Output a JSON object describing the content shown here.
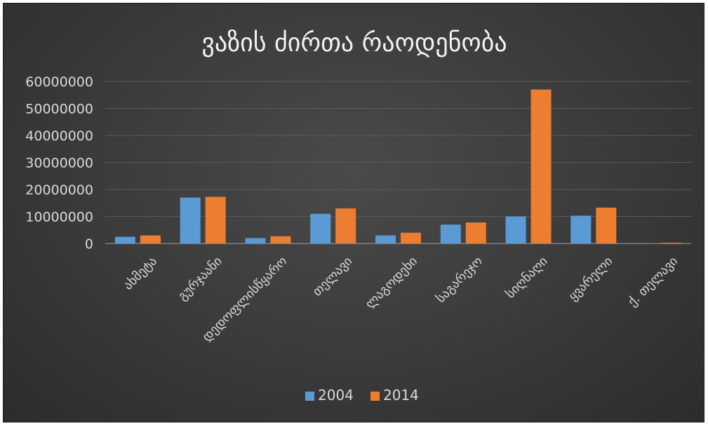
{
  "chart_data": {
    "type": "bar",
    "title": "ვაზის ძირთა რაოდენობა",
    "categories": [
      "ახმეტა",
      "გურჯაანი",
      "დედოფლისწყარო",
      "თელავი",
      "ლაგოდეხი",
      "საგარეჯო",
      "სიღნაღი",
      "ყვარელი",
      "ქ. თელავი"
    ],
    "series": [
      {
        "name": "2004",
        "color": "#5b9bd5",
        "values": [
          2500000,
          17000000,
          2000000,
          11000000,
          3000000,
          7000000,
          10000000,
          10300000,
          0
        ]
      },
      {
        "name": "2014",
        "color": "#ed7d31",
        "values": [
          3000000,
          17300000,
          2700000,
          13000000,
          4000000,
          7800000,
          57000000,
          13300000,
          300000
        ]
      }
    ],
    "yticks": [
      0,
      10000000,
      20000000,
      30000000,
      40000000,
      50000000,
      60000000
    ],
    "yticklabels": [
      "0",
      "10000000",
      "20000000",
      "30000000",
      "40000000",
      "50000000",
      "60000000"
    ],
    "ylim": [
      0,
      60000000
    ],
    "grid": true,
    "legend_position": "bottom"
  }
}
